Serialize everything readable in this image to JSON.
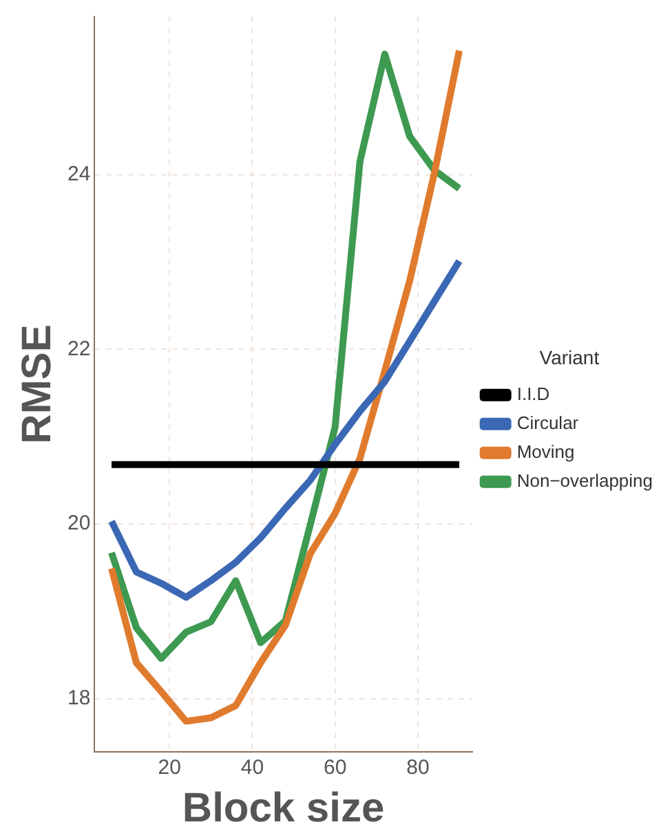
{
  "chart_data": {
    "type": "line",
    "xlabel": "Block size",
    "ylabel": "RMSE",
    "legend_title": "Variant",
    "x": [
      6,
      12,
      18,
      24,
      30,
      36,
      42,
      48,
      54,
      60,
      66,
      72,
      78,
      84,
      90
    ],
    "series": [
      {
        "name": "I.I.D",
        "color": "#000000",
        "values": [
          20.68,
          20.68,
          20.68,
          20.68,
          20.68,
          20.68,
          20.68,
          20.68,
          20.68,
          20.68,
          20.68,
          20.68,
          20.68,
          20.68,
          20.68
        ]
      },
      {
        "name": "Circular",
        "color": "#3a68b4",
        "values": [
          20.03,
          19.45,
          19.32,
          19.16,
          19.35,
          19.56,
          19.84,
          20.18,
          20.5,
          20.91,
          21.29,
          21.63,
          22.09,
          22.55,
          23.01
        ]
      },
      {
        "name": "Moving",
        "color": "#e07b2e",
        "values": [
          19.49,
          18.41,
          18.08,
          17.74,
          17.78,
          17.92,
          18.41,
          18.84,
          19.66,
          20.12,
          20.75,
          21.75,
          22.78,
          24.02,
          25.42
        ]
      },
      {
        "name": "Non−overlapping",
        "color": "#3d9a50",
        "values": [
          19.67,
          18.81,
          18.46,
          18.76,
          18.88,
          19.35,
          18.64,
          18.89,
          19.99,
          21.11,
          24.15,
          25.38,
          24.44,
          24.05,
          23.84
        ]
      }
    ],
    "xlim": [
      1.9,
      93.1
    ],
    "ylim": [
      17.39,
      25.81
    ],
    "xticks": [
      20,
      40,
      60,
      80
    ],
    "yticks": [
      18,
      20,
      22,
      24
    ],
    "grid": true,
    "legend": "right"
  }
}
